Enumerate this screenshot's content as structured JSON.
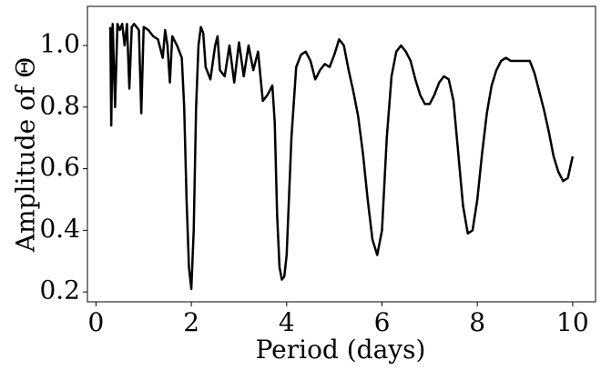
{
  "chart_data": {
    "type": "line",
    "xlabel": "Period (days)",
    "ylabel": "Amplitude of Θ",
    "x": [
      0.3,
      0.32,
      0.35,
      0.4,
      0.45,
      0.5,
      0.55,
      0.6,
      0.65,
      0.7,
      0.75,
      0.8,
      0.9,
      0.95,
      1.0,
      1.1,
      1.2,
      1.3,
      1.4,
      1.45,
      1.5,
      1.55,
      1.6,
      1.7,
      1.75,
      1.8,
      1.85,
      1.9,
      1.95,
      2.0,
      2.05,
      2.1,
      2.15,
      2.2,
      2.25,
      2.3,
      2.4,
      2.5,
      2.55,
      2.6,
      2.7,
      2.8,
      2.9,
      3.0,
      3.1,
      3.2,
      3.3,
      3.4,
      3.5,
      3.6,
      3.7,
      3.75,
      3.8,
      3.85,
      3.9,
      3.95,
      4.0,
      4.1,
      4.2,
      4.3,
      4.4,
      4.5,
      4.6,
      4.7,
      4.8,
      4.9,
      5.0,
      5.1,
      5.2,
      5.3,
      5.4,
      5.5,
      5.6,
      5.7,
      5.8,
      5.9,
      6.0,
      6.1,
      6.2,
      6.3,
      6.4,
      6.5,
      6.6,
      6.7,
      6.8,
      6.9,
      7.0,
      7.1,
      7.2,
      7.3,
      7.4,
      7.5,
      7.6,
      7.7,
      7.8,
      7.9,
      8.0,
      8.1,
      8.2,
      8.3,
      8.4,
      8.5,
      8.6,
      8.7,
      8.8,
      8.9,
      9.0,
      9.1,
      9.2,
      9.3,
      9.4,
      9.5,
      9.6,
      9.7,
      9.8,
      9.9,
      10.0
    ],
    "series": [
      {
        "color": "#000000",
        "values": [
          1.06,
          0.74,
          1.07,
          0.8,
          1.07,
          1.05,
          1.07,
          1.0,
          1.07,
          0.86,
          1.06,
          1.07,
          1.05,
          0.78,
          1.06,
          1.05,
          1.03,
          1.02,
          0.96,
          1.05,
          1.0,
          0.88,
          1.03,
          1.0,
          0.98,
          0.96,
          0.8,
          0.5,
          0.28,
          0.21,
          0.4,
          0.8,
          1.0,
          1.06,
          1.04,
          0.93,
          0.89,
          1.0,
          1.03,
          0.92,
          0.9,
          1.0,
          0.88,
          1.01,
          0.9,
          1.0,
          0.92,
          0.98,
          0.82,
          0.84,
          0.87,
          0.75,
          0.45,
          0.28,
          0.24,
          0.25,
          0.32,
          0.7,
          0.93,
          0.97,
          0.98,
          0.95,
          0.89,
          0.92,
          0.94,
          0.93,
          0.97,
          1.02,
          1.0,
          0.92,
          0.85,
          0.77,
          0.65,
          0.5,
          0.37,
          0.32,
          0.4,
          0.7,
          0.9,
          0.98,
          1.0,
          0.98,
          0.95,
          0.89,
          0.84,
          0.81,
          0.81,
          0.84,
          0.88,
          0.9,
          0.89,
          0.82,
          0.65,
          0.48,
          0.39,
          0.4,
          0.5,
          0.65,
          0.78,
          0.87,
          0.92,
          0.95,
          0.96,
          0.95,
          0.95,
          0.95,
          0.95,
          0.95,
          0.91,
          0.85,
          0.79,
          0.72,
          0.64,
          0.59,
          0.56,
          0.57,
          0.64
        ]
      }
    ],
    "xlim": [
      -0.18,
      10.48
    ],
    "ylim": [
      0.168,
      1.127
    ],
    "xticks": [
      0,
      2,
      4,
      6,
      8,
      10
    ],
    "yticks": [
      0.2,
      0.4,
      0.6,
      0.8,
      {
        "value": 1,
        "label": "1.0"
      }
    ]
  }
}
